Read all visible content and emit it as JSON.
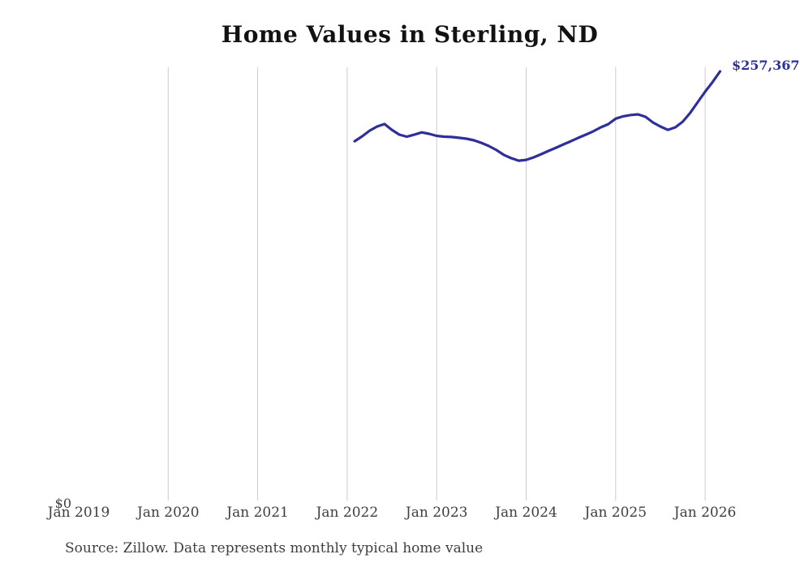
{
  "title": "Home Values in Sterling, ND",
  "source_note": "Source: Zillow. Data represents monthly typical home value",
  "y_axis": {
    "zero_label": "$0"
  },
  "end_value_label": "$257,367",
  "colors": {
    "line": "#2f2f9c",
    "grid": "#cccccc",
    "title_text": "#121212",
    "axis_text": "#3f3f3f"
  },
  "chart_data": {
    "type": "line",
    "title": "Home Values in Sterling, ND",
    "x_tick_labels": [
      "Jan 2019",
      "Jan 2020",
      "Jan 2021",
      "Jan 2022",
      "Jan 2023",
      "Jan 2024",
      "Jan 2025",
      "Jan 2026"
    ],
    "grid": "vertical-only",
    "gridline_years": [
      "Jan 2020",
      "Jan 2021",
      "Jan 2022",
      "Jan 2023",
      "Jan 2024",
      "Jan 2025",
      "Jan 2026"
    ],
    "ylim": [
      0,
      290000
    ],
    "y_axis_labels_shown": [
      "$0"
    ],
    "end_annotation": "$257,367",
    "series": [
      {
        "name": "Typical home value",
        "months": [
          "Feb 2022",
          "Mar 2022",
          "Apr 2022",
          "May 2022",
          "Jun 2022",
          "Jul 2022",
          "Aug 2022",
          "Sep 2022",
          "Oct 2022",
          "Nov 2022",
          "Dec 2022",
          "Jan 2023",
          "Feb 2023",
          "Mar 2023",
          "Apr 2023",
          "May 2023",
          "Jun 2023",
          "Jul 2023",
          "Aug 2023",
          "Sep 2023",
          "Oct 2023",
          "Nov 2023",
          "Dec 2023",
          "Jan 2024",
          "Feb 2024",
          "Mar 2024",
          "Apr 2024",
          "May 2024",
          "Jun 2024",
          "Jul 2024",
          "Aug 2024",
          "Sep 2024",
          "Oct 2024",
          "Nov 2024",
          "Dec 2024",
          "Jan 2025",
          "Feb 2025",
          "Mar 2025",
          "Apr 2025",
          "May 2025",
          "Jun 2025",
          "Jul 2025",
          "Aug 2025",
          "Sep 2025",
          "Oct 2025",
          "Nov 2025",
          "Dec 2025",
          "Jan 2026",
          "Feb 2026",
          "Mar 2026"
        ],
        "values": [
          215500,
          218400,
          221800,
          224300,
          225800,
          222300,
          219400,
          218200,
          219400,
          220800,
          219900,
          218700,
          218200,
          218000,
          217500,
          217000,
          216000,
          214500,
          212600,
          210200,
          207300,
          205300,
          203800,
          204300,
          205800,
          207700,
          209700,
          211600,
          213600,
          215500,
          217500,
          219400,
          221400,
          223800,
          225700,
          229000,
          230400,
          231200,
          231600,
          230100,
          226700,
          224300,
          222300,
          223800,
          227200,
          232500,
          238900,
          245200,
          251000,
          257367
        ]
      }
    ]
  }
}
